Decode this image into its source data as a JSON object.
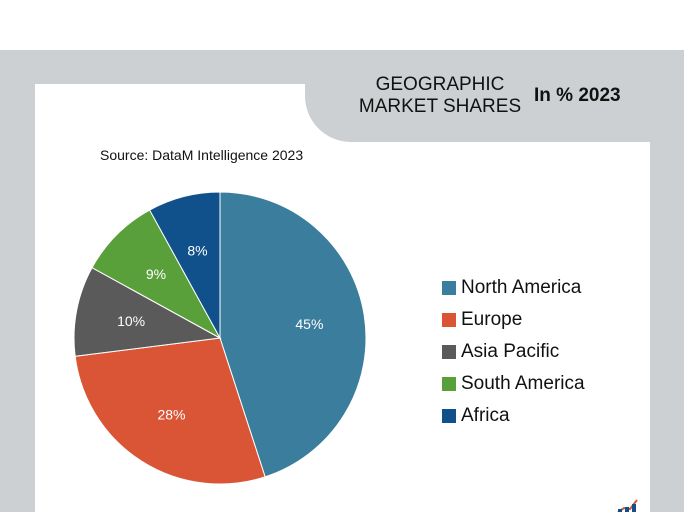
{
  "header": {
    "title_line1": "GEOGRAPHIC",
    "title_line2": "MARKET SHARES",
    "subtitle": "In % 2023"
  },
  "source": "Source: DataM Intelligence 2023",
  "chart_data": {
    "type": "pie",
    "title": "GEOGRAPHIC MARKET SHARES",
    "subtitle": "In % 2023",
    "categories": [
      "North America",
      "Europe",
      "Asia Pacific",
      "South America",
      "Africa"
    ],
    "values": [
      45,
      28,
      10,
      9,
      8
    ],
    "labels": [
      "45%",
      "28%",
      "10%",
      "9%",
      "8%"
    ],
    "colors": [
      "#3a7d9c",
      "#d95535",
      "#5a5a5a",
      "#59a03a",
      "#10518c"
    ],
    "unit": "%",
    "legend_position": "right"
  }
}
